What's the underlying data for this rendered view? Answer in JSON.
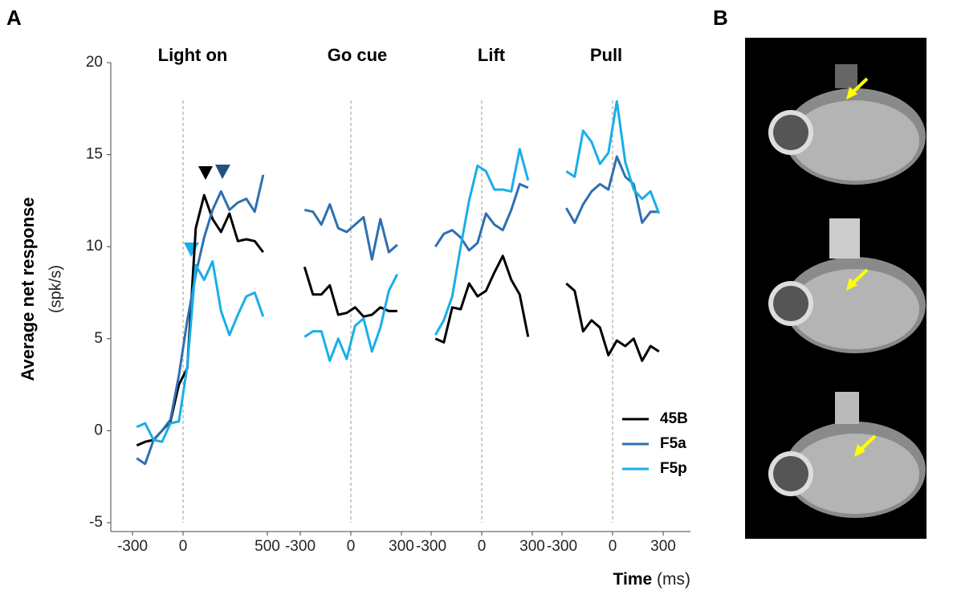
{
  "panel_labels": {
    "a": "A",
    "b": "B"
  },
  "chart_data": {
    "type": "line",
    "ylabel": "Average net response",
    "ylabel_unit": "(spk/s)",
    "xlabel": "Time",
    "xlabel_unit": "(ms)",
    "ylim": [
      -5,
      20
    ],
    "yticks": [
      -5,
      0,
      5,
      10,
      15,
      20
    ],
    "series": [
      {
        "name": "45B",
        "color": "#000000"
      },
      {
        "name": "F5a",
        "color": "#2f6fb1"
      },
      {
        "name": "F5p",
        "color": "#1aaee8"
      }
    ],
    "panels": [
      {
        "title": "Light on",
        "xlim": [
          -300,
          500
        ],
        "xticks": [
          -300,
          0,
          500
        ],
        "x": [
          -275,
          -225,
          -175,
          -125,
          -75,
          -25,
          25,
          75,
          125,
          175,
          225,
          275,
          325,
          375,
          425,
          475
        ],
        "values": [
          [
            -0.8,
            -0.6,
            -0.5,
            0,
            0.5,
            2.5,
            3.4,
            11,
            12.8,
            11.5,
            10.8,
            11.8,
            10.3,
            10.4,
            10.3,
            9.7
          ],
          [
            -1.5,
            -1.8,
            -0.5,
            0,
            0.6,
            3,
            6,
            8.5,
            10.5,
            12,
            13,
            12,
            12.4,
            12.6,
            11.9,
            13.9
          ],
          [
            0.2,
            0.4,
            -0.5,
            -0.6,
            0.4,
            0.5,
            3.5,
            9,
            8.2,
            9.2,
            6.5,
            5.2,
            6.3,
            7.3,
            7.5,
            6.2
          ]
        ]
      },
      {
        "title": "Go cue",
        "xlim": [
          -300,
          300
        ],
        "xticks": [
          -300,
          0,
          300
        ],
        "x": [
          -275,
          -225,
          -175,
          -125,
          -75,
          -25,
          25,
          75,
          125,
          175,
          225,
          275
        ],
        "values": [
          [
            8.9,
            7.4,
            7.4,
            7.9,
            6.3,
            6.4,
            6.7,
            6.2,
            6.3,
            6.7,
            6.5,
            6.5
          ],
          [
            12,
            11.9,
            11.2,
            12.3,
            11,
            10.8,
            11.2,
            11.6,
            9.3,
            11.5,
            9.7,
            10.1
          ],
          [
            5.1,
            5.4,
            5.4,
            3.8,
            5,
            3.9,
            5.7,
            6.1,
            4.3,
            5.6,
            7.6,
            8.5
          ]
        ]
      },
      {
        "title": "Lift",
        "xlim": [
          -300,
          300
        ],
        "xticks": [
          -300,
          0,
          300
        ],
        "x": [
          -275,
          -225,
          -175,
          -125,
          -75,
          -25,
          25,
          75,
          125,
          175,
          225,
          275
        ],
        "values": [
          [
            5,
            4.8,
            6.7,
            6.6,
            8,
            7.3,
            7.6,
            8.6,
            9.5,
            8.2,
            7.4,
            5.1
          ],
          [
            10,
            10.7,
            10.9,
            10.5,
            9.8,
            10.2,
            11.8,
            11.2,
            10.9,
            12,
            13.4,
            13.2
          ],
          [
            5.2,
            6,
            7.3,
            10,
            12.5,
            14.4,
            14.1,
            13.1,
            13.1,
            13,
            15.3,
            13.6
          ]
        ]
      },
      {
        "title": "Pull",
        "xlim": [
          -300,
          300
        ],
        "xticks": [
          -300,
          0,
          300
        ],
        "x": [
          -275,
          -225,
          -175,
          -125,
          -75,
          -25,
          25,
          75,
          125,
          175,
          225,
          275
        ],
        "values": [
          [
            8,
            7.6,
            5.4,
            6,
            5.6,
            4.1,
            4.9,
            4.6,
            5,
            3.8,
            4.6,
            4.3
          ],
          [
            12.1,
            11.3,
            12.3,
            13,
            13.4,
            13.1,
            14.9,
            13.8,
            13.4,
            11.3,
            11.9,
            11.9
          ],
          [
            14.1,
            13.8,
            16.3,
            15.7,
            14.5,
            15.1,
            17.9,
            14.6,
            13.1,
            12.6,
            13,
            11.8
          ]
        ]
      }
    ]
  }
}
